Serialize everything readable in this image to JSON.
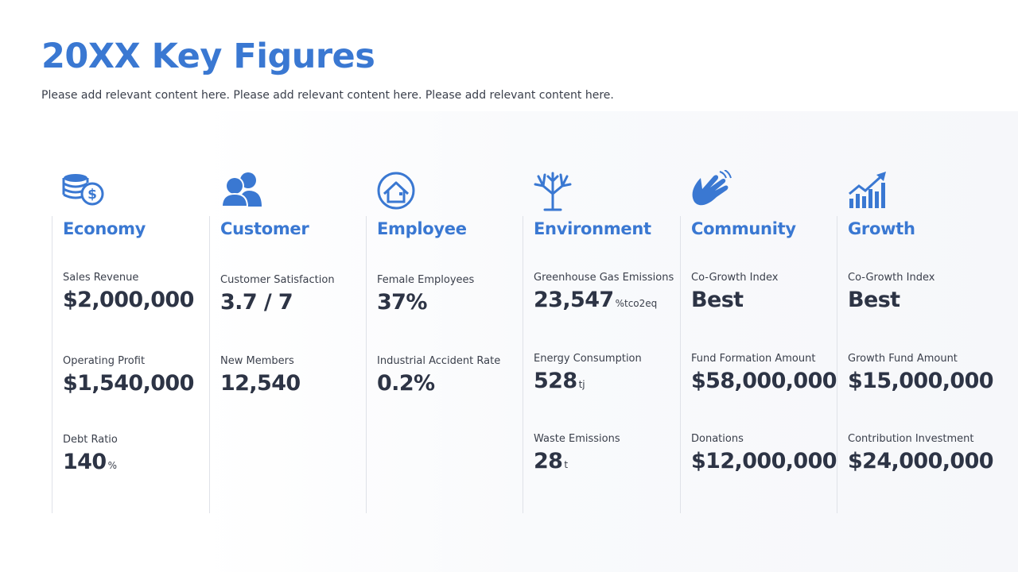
{
  "header": {
    "title": "20XX Key Figures",
    "subtitle": "Please add relevant content here. Please add relevant content here. Please add relevant content here."
  },
  "theme": {
    "accent": "#3a78d2",
    "text": "#2d3445",
    "divider": "#dfe2e8"
  },
  "columns": [
    {
      "icon": "coins-dollar-icon",
      "title": "Economy",
      "metrics": [
        {
          "label": "Sales Revenue",
          "value": "$2,000,000",
          "unit": ""
        },
        {
          "label": "Operating Profit",
          "value": "$1,540,000",
          "unit": ""
        },
        {
          "label": "Debt Ratio",
          "value": "140",
          "unit": "%"
        }
      ]
    },
    {
      "icon": "people-icon",
      "title": "Customer",
      "metrics": [
        {
          "label": "Customer Satisfaction",
          "value": "3.7 / 7",
          "unit": ""
        },
        {
          "label": "New Members",
          "value": "12,540",
          "unit": ""
        }
      ]
    },
    {
      "icon": "house-icon",
      "title": "Employee",
      "metrics": [
        {
          "label": "Female Employees",
          "value": "37%",
          "unit": ""
        },
        {
          "label": "Industrial Accident Rate",
          "value": "0.2%",
          "unit": ""
        }
      ]
    },
    {
      "icon": "tree-icon",
      "title": "Environment",
      "metrics": [
        {
          "label": "Greenhouse Gas Emissions",
          "value": "23,547",
          "unit": "%tco2eq"
        },
        {
          "label": "Energy Consumption",
          "value": "528",
          "unit": "tj"
        },
        {
          "label": "Waste Emissions",
          "value": "28",
          "unit": "t"
        }
      ]
    },
    {
      "icon": "waving-hand-icon",
      "title": "Community",
      "metrics": [
        {
          "label": "Co-Growth Index",
          "value": "Best",
          "unit": ""
        },
        {
          "label": "Fund Formation Amount",
          "value": "$58,000,000",
          "unit": ""
        },
        {
          "label": "Donations",
          "value": "$12,000,000",
          "unit": ""
        }
      ]
    },
    {
      "icon": "growth-chart-icon",
      "title": "Growth",
      "metrics": [
        {
          "label": "Co-Growth Index",
          "value": "Best",
          "unit": ""
        },
        {
          "label": "Growth Fund Amount",
          "value": "$15,000,000",
          "unit": ""
        },
        {
          "label": "Contribution Investment",
          "value": "$24,000,000",
          "unit": ""
        }
      ]
    }
  ]
}
